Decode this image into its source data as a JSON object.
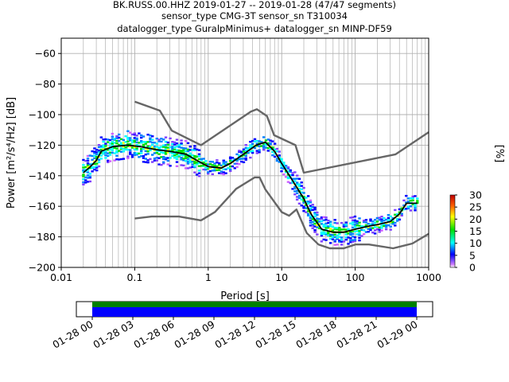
{
  "title_lines": [
    "BK.RUSS.00.HHZ   2019-01-27 -- 2019-01-28  (47/47 segments)",
    "sensor_type CMG-3T sensor_sn T310034",
    "datalogger_type GuralpMinimus+ datalogger_sn MINP-DF59"
  ],
  "chart_data": {
    "type": "heatmap",
    "xlabel": "Period [s]",
    "ylabel": "Power [m²/s⁴/Hz] [dB]",
    "x_scale": "log",
    "xlim": [
      0.01,
      1000
    ],
    "ylim": [
      -200,
      -50
    ],
    "x_ticks": [
      0.01,
      0.1,
      1,
      10,
      100,
      1000
    ],
    "x_tick_labels": [
      "0.01",
      "0.1",
      "1",
      "10",
      "100",
      "1000"
    ],
    "y_ticks": [
      -200,
      -180,
      -160,
      -140,
      -120,
      -100,
      -80,
      -60
    ],
    "y_tick_labels": [
      "−200",
      "−180",
      "−160",
      "−140",
      "−120",
      "−100",
      "−80",
      "−60"
    ],
    "grid": true,
    "colorbar": {
      "label": "[%]",
      "range": [
        0,
        30
      ],
      "ticks": [
        0,
        5,
        10,
        15,
        20,
        25,
        30
      ],
      "tick_labels": [
        "0",
        "5",
        "10",
        "15",
        "20",
        "25",
        "30"
      ],
      "colormap": "pqlx"
    },
    "series": [
      {
        "role": "noise-model-high",
        "color": "#666666",
        "points": [
          [
            0.1,
            -91.5
          ],
          [
            0.22,
            -97.4
          ],
          [
            0.32,
            -110.5
          ],
          [
            0.8,
            -120.0
          ],
          [
            3.8,
            -98.0
          ],
          [
            4.6,
            -96.5
          ],
          [
            6.3,
            -101.0
          ],
          [
            7.9,
            -113.5
          ],
          [
            15.4,
            -120.0
          ],
          [
            20.0,
            -138.0
          ],
          [
            354.8,
            -126.0
          ],
          [
            1000,
            -111.5
          ]
        ]
      },
      {
        "role": "noise-model-low",
        "color": "#666666",
        "points": [
          [
            0.1,
            -168.0
          ],
          [
            0.17,
            -166.7
          ],
          [
            0.4,
            -166.7
          ],
          [
            0.8,
            -169.2
          ],
          [
            1.24,
            -163.7
          ],
          [
            2.4,
            -148.6
          ],
          [
            4.3,
            -141.1
          ],
          [
            5.0,
            -141.1
          ],
          [
            6.0,
            -149.0
          ],
          [
            10.0,
            -163.8
          ],
          [
            12.6,
            -166.2
          ],
          [
            15.9,
            -162.1
          ],
          [
            21.9,
            -177.5
          ],
          [
            31.6,
            -185.0
          ],
          [
            45.0,
            -187.5
          ],
          [
            70.0,
            -187.5
          ],
          [
            101.0,
            -185.0
          ],
          [
            154.0,
            -185.0
          ],
          [
            328.0,
            -187.5
          ],
          [
            600.0,
            -184.4
          ],
          [
            1000,
            -178.0
          ]
        ]
      },
      {
        "role": "mode",
        "color": "#000000",
        "points": [
          [
            0.02,
            -138
          ],
          [
            0.025,
            -134
          ],
          [
            0.03,
            -130
          ],
          [
            0.035,
            -124
          ],
          [
            0.05,
            -121
          ],
          [
            0.08,
            -120
          ],
          [
            0.12,
            -121
          ],
          [
            0.2,
            -123
          ],
          [
            0.3,
            -124
          ],
          [
            0.5,
            -126
          ],
          [
            0.7,
            -130
          ],
          [
            1.0,
            -134
          ],
          [
            1.5,
            -135
          ],
          [
            2.0,
            -132
          ],
          [
            3.0,
            -126
          ],
          [
            4.5,
            -120
          ],
          [
            6.0,
            -118
          ],
          [
            8.0,
            -124
          ],
          [
            10.0,
            -132
          ],
          [
            14.0,
            -143
          ],
          [
            20.0,
            -155
          ],
          [
            25.0,
            -165
          ],
          [
            35.0,
            -175
          ],
          [
            50.0,
            -177
          ],
          [
            70.0,
            -177
          ],
          [
            100.0,
            -175
          ],
          [
            150.0,
            -173
          ],
          [
            200.0,
            -172
          ],
          [
            300.0,
            -170
          ],
          [
            400.0,
            -165
          ],
          [
            500.0,
            -158
          ],
          [
            700.0,
            -158
          ]
        ]
      }
    ]
  },
  "timeline": {
    "tick_labels": [
      "01-28 00",
      "01-28 03",
      "01-28 06",
      "01-28 09",
      "01-28 12",
      "01-28 15",
      "01-28 18",
      "01-28 21",
      "01-29 00"
    ],
    "colors": {
      "data_coverage": "#0000ff",
      "psd_coverage": "#008000"
    }
  }
}
